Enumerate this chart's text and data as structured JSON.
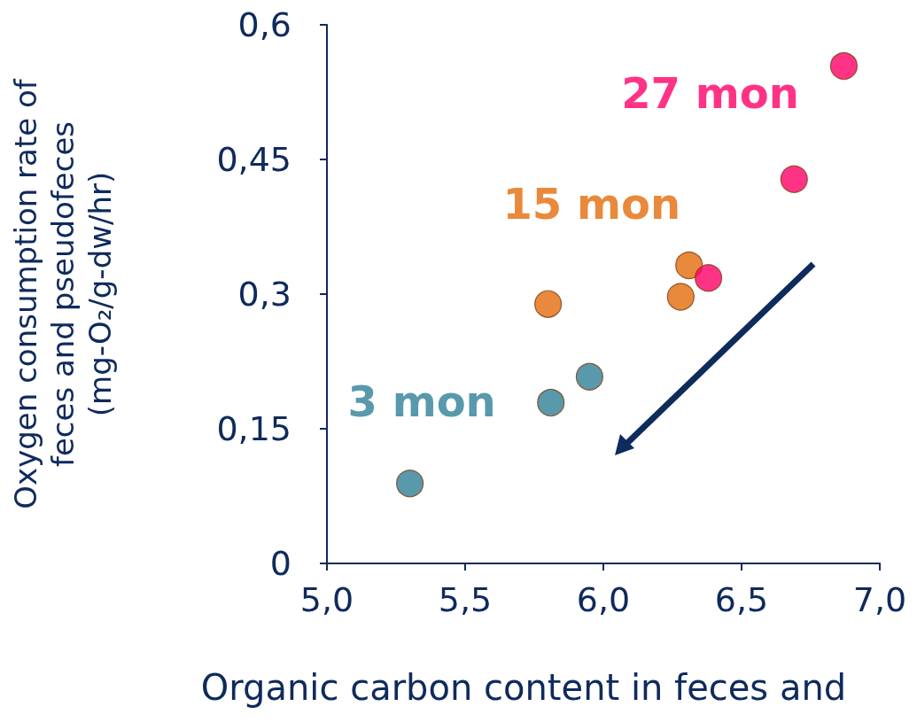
{
  "chart_data": {
    "type": "scatter",
    "xlabel": "Organic carbon content in feces and",
    "ylabel": "Oxygen consumption rate of\nfeces and pseudofeces\n(mg-O₂/g-dw/hr)",
    "xlim": [
      5.0,
      7.0
    ],
    "xticks": [
      {
        "value": 5.0,
        "label": "5,0"
      },
      {
        "value": 5.5,
        "label": "5,5"
      },
      {
        "value": 6.0,
        "label": "6,0"
      },
      {
        "value": 6.5,
        "label": "6,5"
      },
      {
        "value": 7.0,
        "label": "7,0"
      }
    ],
    "ylim": [
      0,
      0.6
    ],
    "yticks": [
      0,
      {
        "value": 0.15,
        "label": "0,15"
      },
      {
        "value": 0.3,
        "label": "0,3"
      },
      {
        "value": 0.45,
        "label": "0,45"
      },
      {
        "value": 0.6,
        "label": "0,6"
      }
    ],
    "series": [
      {
        "name": "3 mon",
        "color": "#2e7f96",
        "x": [
          5.3,
          5.81,
          5.95
        ],
        "values": [
          0.089,
          0.179,
          0.208
        ]
      },
      {
        "name": "15 mon",
        "color": "#e36c0a",
        "x": [
          5.8,
          6.28,
          6.31
        ],
        "values": [
          0.289,
          0.297,
          0.332
        ]
      },
      {
        "name": "27 mon",
        "color": "#ff0066",
        "x": [
          6.38,
          6.69,
          6.87
        ],
        "values": [
          0.318,
          0.428,
          0.554
        ]
      }
    ],
    "grid": false,
    "legend": false,
    "marker": "circle"
  }
}
